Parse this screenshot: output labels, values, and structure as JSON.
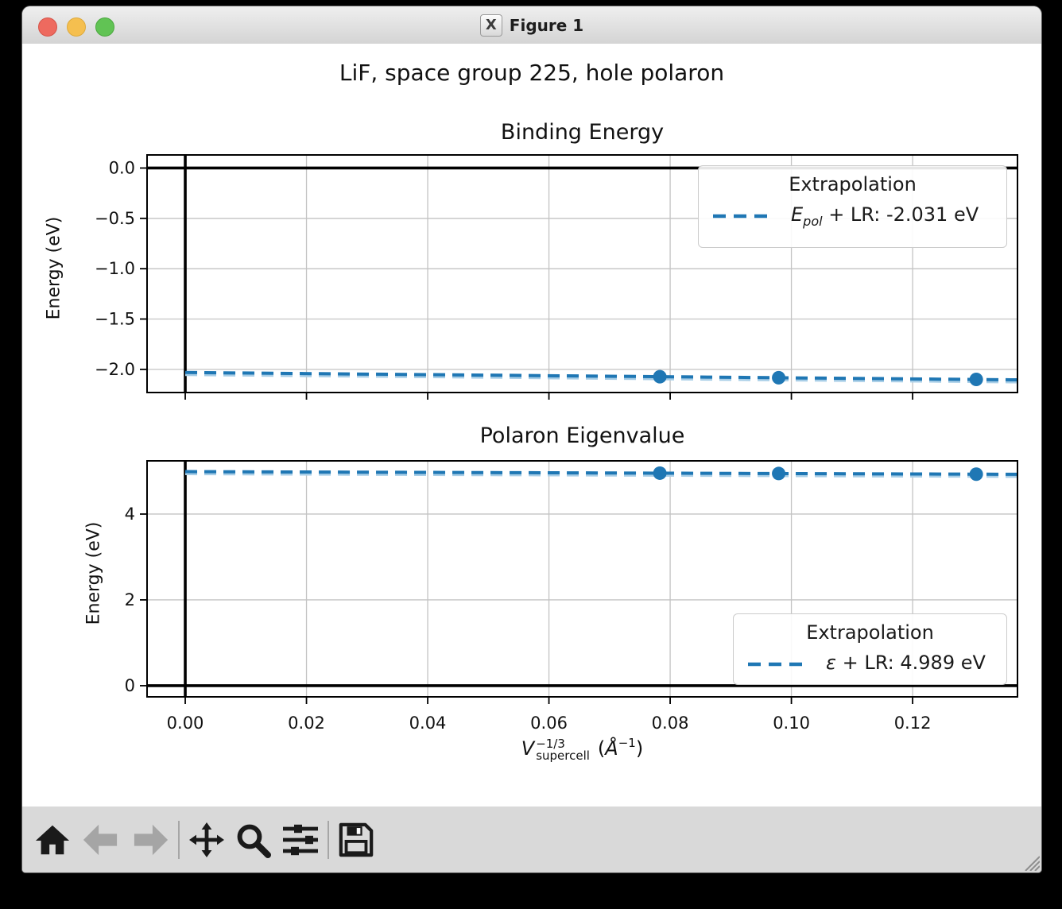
{
  "window": {
    "title": "Figure 1",
    "icon_glyph": "X",
    "traffic_lights": {
      "close": "#ee6a5f",
      "minimize": "#f5bf4f",
      "zoom": "#61c354"
    }
  },
  "figure": {
    "suptitle": "LiF, space group 225, hole polaron"
  },
  "colors": {
    "line_blue": "#1f77b4",
    "line_blue_light": "#a8cee7",
    "grid": "#c3c3c3",
    "spine": "#000000"
  },
  "chart_data": [
    {
      "type": "line",
      "title": "Binding Energy",
      "ylabel": "Energy (eV)",
      "xlim": [
        -0.0063,
        0.1373
      ],
      "ylim": [
        -2.23,
        0.13
      ],
      "grid": true,
      "xticks": [
        0.0,
        0.02,
        0.04,
        0.06,
        0.08,
        0.1,
        0.12
      ],
      "xtick_labels": [
        "0.00",
        "0.02",
        "0.04",
        "0.06",
        "0.08",
        "0.10",
        "0.12"
      ],
      "show_xtick_labels": false,
      "yticks": [
        0.0,
        -0.5,
        -1.0,
        -1.5,
        -2.0
      ],
      "ytick_labels": [
        "0.0",
        "−0.5",
        "−1.0",
        "−1.5",
        "−2.0"
      ],
      "axhline": 0.0,
      "axvline": 0.0,
      "series": [
        {
          "name": "Epol + LR extrapolation",
          "style": "dashed",
          "line_x": [
            0.0,
            0.1373
          ],
          "line_y": [
            -2.031,
            -2.104
          ],
          "points_x": [
            0.0783,
            0.0979,
            0.1305
          ],
          "points_y": [
            -2.073,
            -2.083,
            -2.1
          ],
          "extrapolation_eV": -2.031
        }
      ],
      "legend": {
        "title": "Extrapolation",
        "symbol": "E",
        "symbol_sub": "pol",
        "rest": " + LR: -2.031 eV",
        "position": "upper right"
      }
    },
    {
      "type": "line",
      "title": "Polaron Eigenvalue",
      "ylabel": "Energy (eV)",
      "xlim": [
        -0.0063,
        0.1373
      ],
      "ylim": [
        -0.26,
        5.24
      ],
      "grid": true,
      "xticks": [
        0.0,
        0.02,
        0.04,
        0.06,
        0.08,
        0.1,
        0.12
      ],
      "xtick_labels": [
        "0.00",
        "0.02",
        "0.04",
        "0.06",
        "0.08",
        "0.10",
        "0.12"
      ],
      "show_xtick_labels": true,
      "yticks": [
        0,
        2,
        4
      ],
      "ytick_labels": [
        "0",
        "2",
        "4"
      ],
      "axhline": 0.0,
      "axvline": 0.0,
      "series": [
        {
          "name": "eps + LR extrapolation",
          "style": "dashed",
          "line_x": [
            0.0,
            0.1373
          ],
          "line_y": [
            4.989,
            4.927
          ],
          "points_x": [
            0.0783,
            0.0979,
            0.1305
          ],
          "points_y": [
            4.954,
            4.945,
            4.93
          ],
          "extrapolation_eV": 4.989
        }
      ],
      "legend": {
        "title": "Extrapolation",
        "symbol": "ε",
        "symbol_sub": "",
        "rest": " + LR: 4.989 eV",
        "position": "lower right"
      }
    }
  ],
  "xaxis_label": {
    "v": "V",
    "sup": "−1/3",
    "subscript": "supercell",
    "open": "(",
    "angstrom": "Å",
    "exp": "−1",
    "close": ")"
  },
  "toolbar": {
    "buttons": [
      {
        "label": "home",
        "enabled": true
      },
      {
        "label": "back",
        "enabled": false
      },
      {
        "label": "forward",
        "enabled": false
      },
      {
        "label": "pan",
        "enabled": true
      },
      {
        "label": "zoom-to-rect",
        "enabled": true
      },
      {
        "label": "configure-subplots",
        "enabled": true
      },
      {
        "label": "save",
        "enabled": true
      }
    ]
  }
}
